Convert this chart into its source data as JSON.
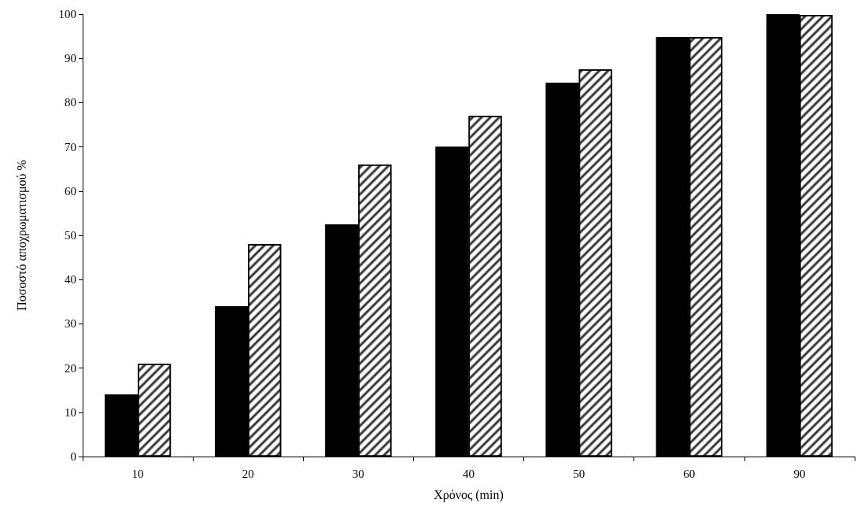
{
  "chart_data": {
    "type": "bar",
    "xlabel": "Χρόνος (min)",
    "ylabel": "Ποσοστό αποχρωματισμού %",
    "categories": [
      "10",
      "20",
      "30",
      "40",
      "50",
      "60",
      "90"
    ],
    "series": [
      {
        "color": "#000000",
        "values": [
          14,
          34,
          52.5,
          70,
          84.5,
          94.8,
          100
        ]
      },
      {
        "color": "#ffffff",
        "values": [
          21,
          48,
          66,
          77,
          87.5,
          94.8,
          99.8
        ]
      }
    ],
    "ylim": [
      0,
      100
    ],
    "yticks": [
      0,
      10,
      20,
      30,
      40,
      50,
      60,
      70,
      80,
      90,
      100
    ],
    "grid": false
  }
}
